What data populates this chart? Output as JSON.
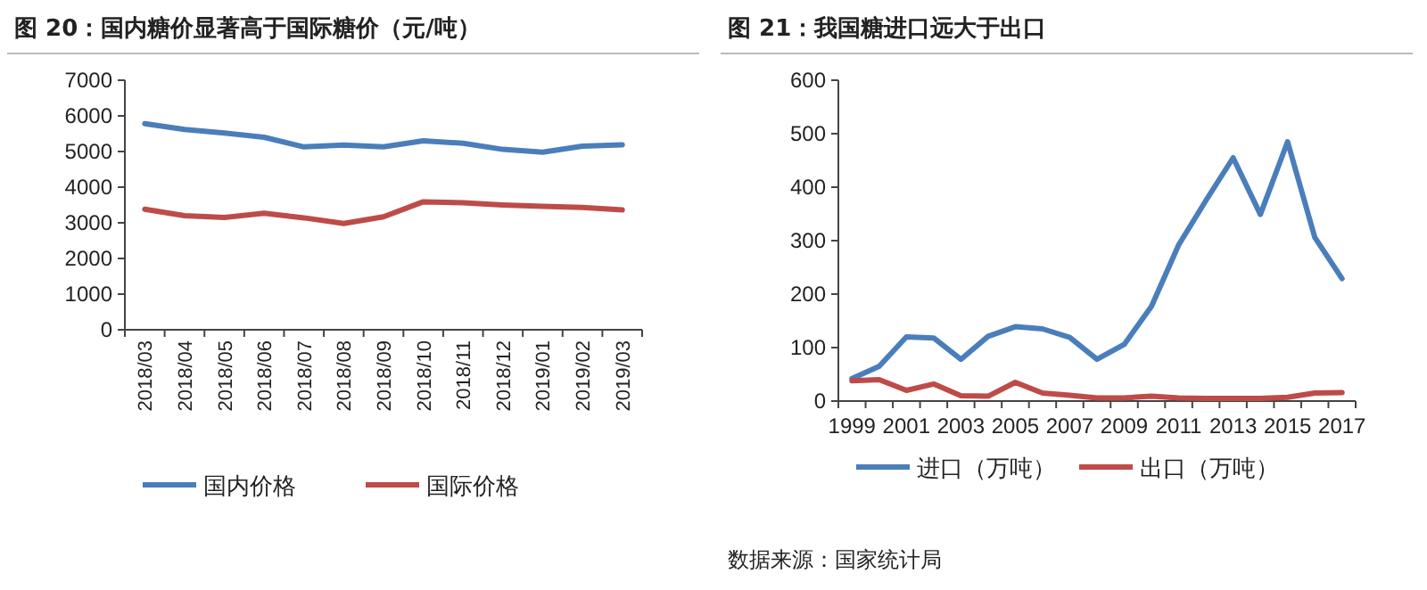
{
  "chart_data": [
    {
      "type": "line",
      "title": "图 20：国内糖价显著高于国际糖价（元/吨）",
      "categories": [
        "2018/03",
        "2018/04",
        "2018/05",
        "2018/06",
        "2018/07",
        "2018/08",
        "2018/09",
        "2018/10",
        "2018/11",
        "2018/12",
        "2019/01",
        "2019/02",
        "2019/03"
      ],
      "series": [
        {
          "name": "国内价格",
          "color": "#4a7ebb",
          "values": [
            5780,
            5620,
            5520,
            5400,
            5130,
            5180,
            5130,
            5300,
            5230,
            5060,
            4980,
            5150,
            5190
          ]
        },
        {
          "name": "国际价格",
          "color": "#be4b48",
          "values": [
            3380,
            3200,
            3150,
            3270,
            3140,
            2980,
            3170,
            3590,
            3560,
            3500,
            3460,
            3430,
            3360
          ]
        }
      ],
      "ylim": [
        0,
        7000
      ],
      "yticks": [
        0,
        1000,
        2000,
        3000,
        4000,
        5000,
        6000,
        7000
      ],
      "legend": "bottom",
      "grid": false
    },
    {
      "type": "line",
      "title": "图 21：我国糖进口远大于出口",
      "categories": [
        "1999",
        null,
        "2001",
        null,
        "2003",
        null,
        "2005",
        null,
        "2007",
        null,
        "2009",
        null,
        "2011",
        null,
        "2013",
        null,
        "2015",
        null,
        "2017"
      ],
      "series": [
        {
          "name": "进口（万吨）",
          "color": "#4a7ebb",
          "values": [
            42,
            65,
            120,
            118,
            78,
            121,
            139,
            135,
            119,
            78,
            106,
            177,
            292,
            375,
            455,
            349,
            485,
            306,
            229
          ]
        },
        {
          "name": "出口（万吨）",
          "color": "#be4b48",
          "values": [
            38,
            40,
            20,
            32,
            10,
            9,
            35,
            15,
            11,
            6,
            6,
            9,
            6,
            5,
            5,
            5,
            7,
            15,
            16
          ]
        }
      ],
      "ylim": [
        0,
        600
      ],
      "yticks": [
        0,
        100,
        200,
        300,
        400,
        500,
        600
      ],
      "legend": "bottom",
      "grid": false,
      "annotations": [
        "数据来源：国家统计局"
      ]
    }
  ]
}
